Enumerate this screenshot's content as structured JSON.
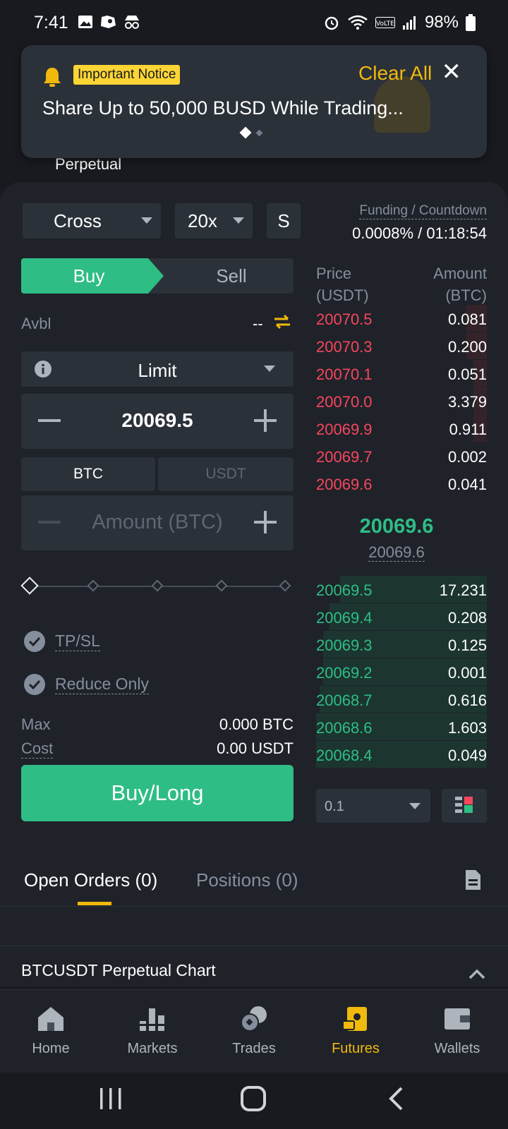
{
  "status_bar": {
    "time": "7:41",
    "battery": "98%"
  },
  "notice": {
    "badge": "Important Notice",
    "clear_all": "Clear All",
    "close": "✕",
    "message": "Share Up to 50,000 BUSD While Trading..."
  },
  "contract_subtitle": "Perpetual",
  "controls": {
    "margin_mode": "Cross",
    "leverage": "20x",
    "size_mode": "S"
  },
  "funding": {
    "label": "Funding / Countdown",
    "value": "0.0008% / 01:18:54"
  },
  "order_form": {
    "buy_tab": "Buy",
    "sell_tab": "Sell",
    "avbl_label": "Avbl",
    "avbl_value": "--",
    "order_type": "Limit",
    "price": "20069.5",
    "unit_btc": "BTC",
    "unit_usdt": "USDT",
    "amount_placeholder": "Amount (BTC)",
    "tpsl": "TP/SL",
    "reduce_only": "Reduce Only",
    "max_label": "Max",
    "max_value": "0.000 BTC",
    "cost_label": "Cost",
    "cost_value": "0.00 USDT",
    "submit": "Buy/Long"
  },
  "order_book": {
    "price_header": "Price",
    "price_unit": "(USDT)",
    "amount_header": "Amount",
    "amount_unit": "(BTC)",
    "asks": [
      {
        "price": "20070.5",
        "amount": "0.081",
        "depth": 0.12
      },
      {
        "price": "20070.3",
        "amount": "0.200",
        "depth": 0.12
      },
      {
        "price": "20070.1",
        "amount": "0.051",
        "depth": 0.08
      },
      {
        "price": "20070.0",
        "amount": "3.379",
        "depth": 0.08
      },
      {
        "price": "20069.9",
        "amount": "0.911",
        "depth": 0.08
      },
      {
        "price": "20069.7",
        "amount": "0.002",
        "depth": 0.0
      },
      {
        "price": "20069.6",
        "amount": "0.041",
        "depth": 0.0
      }
    ],
    "last_price": "20069.6",
    "mark_price": "20069.6",
    "bids": [
      {
        "price": "20069.5",
        "amount": "17.231",
        "depth": 0.86
      },
      {
        "price": "20069.4",
        "amount": "0.208",
        "depth": 0.92
      },
      {
        "price": "20069.3",
        "amount": "0.125",
        "depth": 0.96
      },
      {
        "price": "20069.2",
        "amount": "0.001",
        "depth": 0.96
      },
      {
        "price": "20068.7",
        "amount": "0.616",
        "depth": 0.98
      },
      {
        "price": "20068.6",
        "amount": "1.603",
        "depth": 1.0
      },
      {
        "price": "20068.4",
        "amount": "0.049",
        "depth": 1.0
      }
    ],
    "depth_value": "0.1"
  },
  "tabs": {
    "open_orders": "Open Orders (0)",
    "positions": "Positions (0)"
  },
  "chart_section": {
    "title": "BTCUSDT Perpetual  Chart"
  },
  "bottom_nav": [
    {
      "label": "Home"
    },
    {
      "label": "Markets"
    },
    {
      "label": "Trades"
    },
    {
      "label": "Futures"
    },
    {
      "label": "Wallets"
    }
  ],
  "colors": {
    "buy": "#2ebd85",
    "sell": "#f6465d",
    "accent": "#f0b90b"
  }
}
